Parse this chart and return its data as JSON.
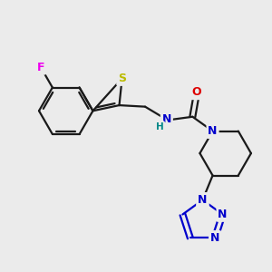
{
  "background_color": "#ebebeb",
  "bond_color": "#1a1a1a",
  "atom_colors": {
    "F": "#ee00ee",
    "S": "#bbbb00",
    "N": "#0000cc",
    "O": "#dd0000",
    "H": "#008888",
    "C": "#1a1a1a"
  },
  "figsize": [
    3.0,
    3.0
  ],
  "dpi": 100
}
